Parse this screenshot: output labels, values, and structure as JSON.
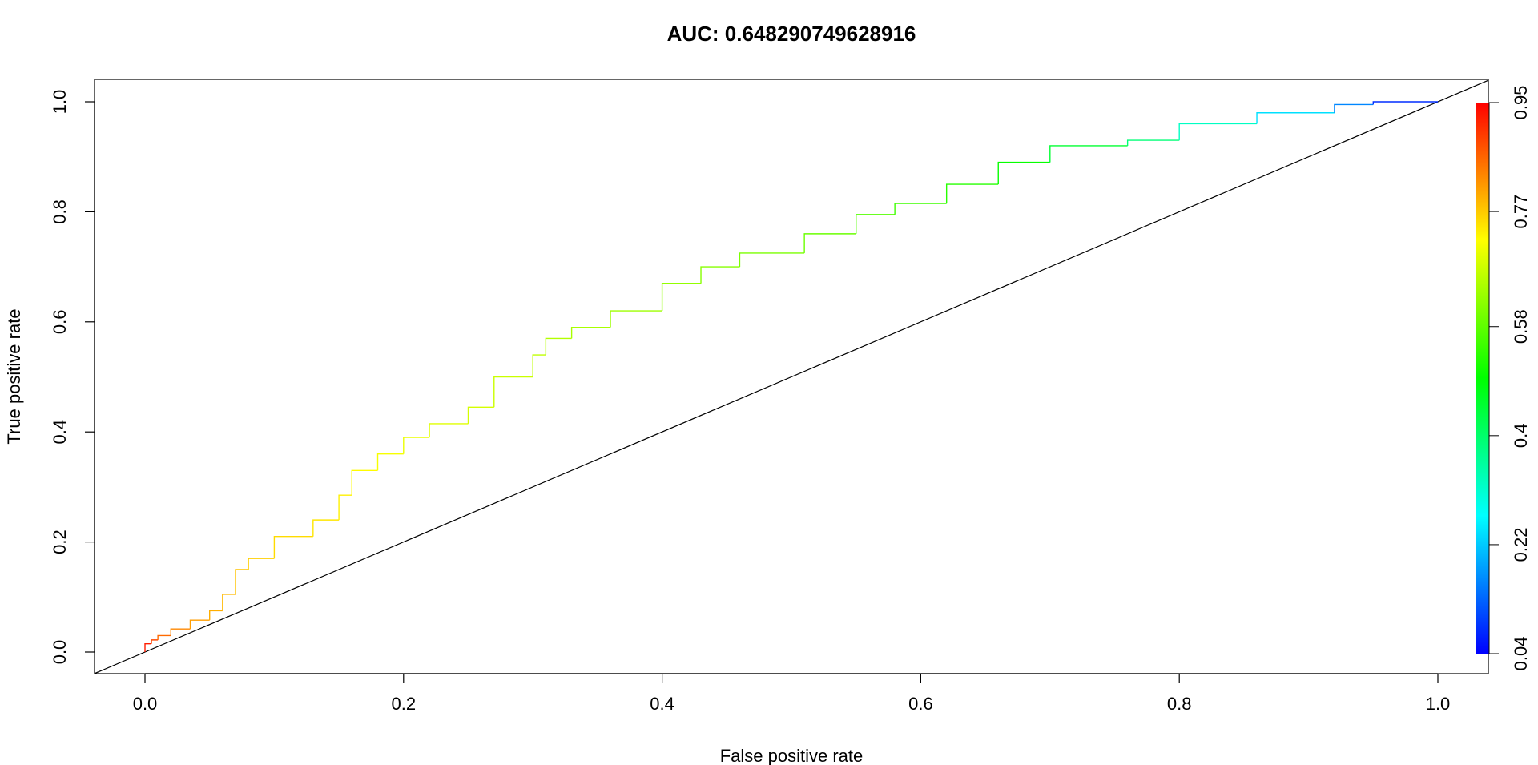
{
  "chart_data": {
    "type": "line",
    "title": "AUC: 0.648290749628916",
    "xlabel": "False positive rate",
    "ylabel": "True positive rate",
    "xlim": [
      0,
      1
    ],
    "ylim": [
      0,
      1
    ],
    "x_ticks": [
      "0.0",
      "0.2",
      "0.4",
      "0.6",
      "0.8",
      "1.0"
    ],
    "y_ticks": [
      "0.0",
      "0.2",
      "0.4",
      "0.6",
      "0.8",
      "1.0"
    ],
    "grid": false,
    "legend": "none",
    "series": [
      {
        "points": [
          {
            "x": 0.0,
            "y": 0.0,
            "cutoff": 0.95
          },
          {
            "x": 0.005,
            "y": 0.015,
            "cutoff": 0.9
          },
          {
            "x": 0.01,
            "y": 0.022,
            "cutoff": 0.87
          },
          {
            "x": 0.02,
            "y": 0.03,
            "cutoff": 0.84
          },
          {
            "x": 0.035,
            "y": 0.042,
            "cutoff": 0.82
          },
          {
            "x": 0.05,
            "y": 0.058,
            "cutoff": 0.8
          },
          {
            "x": 0.06,
            "y": 0.075,
            "cutoff": 0.79
          },
          {
            "x": 0.07,
            "y": 0.105,
            "cutoff": 0.78
          },
          {
            "x": 0.08,
            "y": 0.15,
            "cutoff": 0.77
          },
          {
            "x": 0.1,
            "y": 0.17,
            "cutoff": 0.76
          },
          {
            "x": 0.13,
            "y": 0.21,
            "cutoff": 0.75
          },
          {
            "x": 0.15,
            "y": 0.24,
            "cutoff": 0.74
          },
          {
            "x": 0.16,
            "y": 0.285,
            "cutoff": 0.73
          },
          {
            "x": 0.18,
            "y": 0.33,
            "cutoff": 0.72
          },
          {
            "x": 0.2,
            "y": 0.36,
            "cutoff": 0.71
          },
          {
            "x": 0.22,
            "y": 0.39,
            "cutoff": 0.7
          },
          {
            "x": 0.25,
            "y": 0.415,
            "cutoff": 0.69
          },
          {
            "x": 0.27,
            "y": 0.445,
            "cutoff": 0.68
          },
          {
            "x": 0.3,
            "y": 0.5,
            "cutoff": 0.67
          },
          {
            "x": 0.31,
            "y": 0.54,
            "cutoff": 0.66
          },
          {
            "x": 0.33,
            "y": 0.57,
            "cutoff": 0.65
          },
          {
            "x": 0.36,
            "y": 0.59,
            "cutoff": 0.64
          },
          {
            "x": 0.4,
            "y": 0.62,
            "cutoff": 0.63
          },
          {
            "x": 0.43,
            "y": 0.67,
            "cutoff": 0.62
          },
          {
            "x": 0.46,
            "y": 0.7,
            "cutoff": 0.61
          },
          {
            "x": 0.51,
            "y": 0.725,
            "cutoff": 0.6
          },
          {
            "x": 0.55,
            "y": 0.76,
            "cutoff": 0.58
          },
          {
            "x": 0.58,
            "y": 0.795,
            "cutoff": 0.56
          },
          {
            "x": 0.62,
            "y": 0.815,
            "cutoff": 0.54
          },
          {
            "x": 0.66,
            "y": 0.85,
            "cutoff": 0.52
          },
          {
            "x": 0.7,
            "y": 0.89,
            "cutoff": 0.48
          },
          {
            "x": 0.76,
            "y": 0.92,
            "cutoff": 0.42
          },
          {
            "x": 0.8,
            "y": 0.93,
            "cutoff": 0.36
          },
          {
            "x": 0.86,
            "y": 0.96,
            "cutoff": 0.28
          },
          {
            "x": 0.92,
            "y": 0.98,
            "cutoff": 0.2
          },
          {
            "x": 0.95,
            "y": 0.995,
            "cutoff": 0.12
          },
          {
            "x": 1.0,
            "y": 1.0,
            "cutoff": 0.04
          }
        ]
      }
    ],
    "reference_line": {
      "from": [
        0,
        0
      ],
      "to": [
        1,
        1
      ],
      "color": "#000000"
    },
    "colorbar": {
      "labels": [
        "0.04",
        "0.22",
        "0.4",
        "0.58",
        "0.77",
        "0.95"
      ],
      "min": 0.04,
      "max": 0.95,
      "colors": [
        "#0000FF",
        "#00FFFF",
        "#00FF00",
        "#FFFF00",
        "#FF0000"
      ]
    }
  }
}
